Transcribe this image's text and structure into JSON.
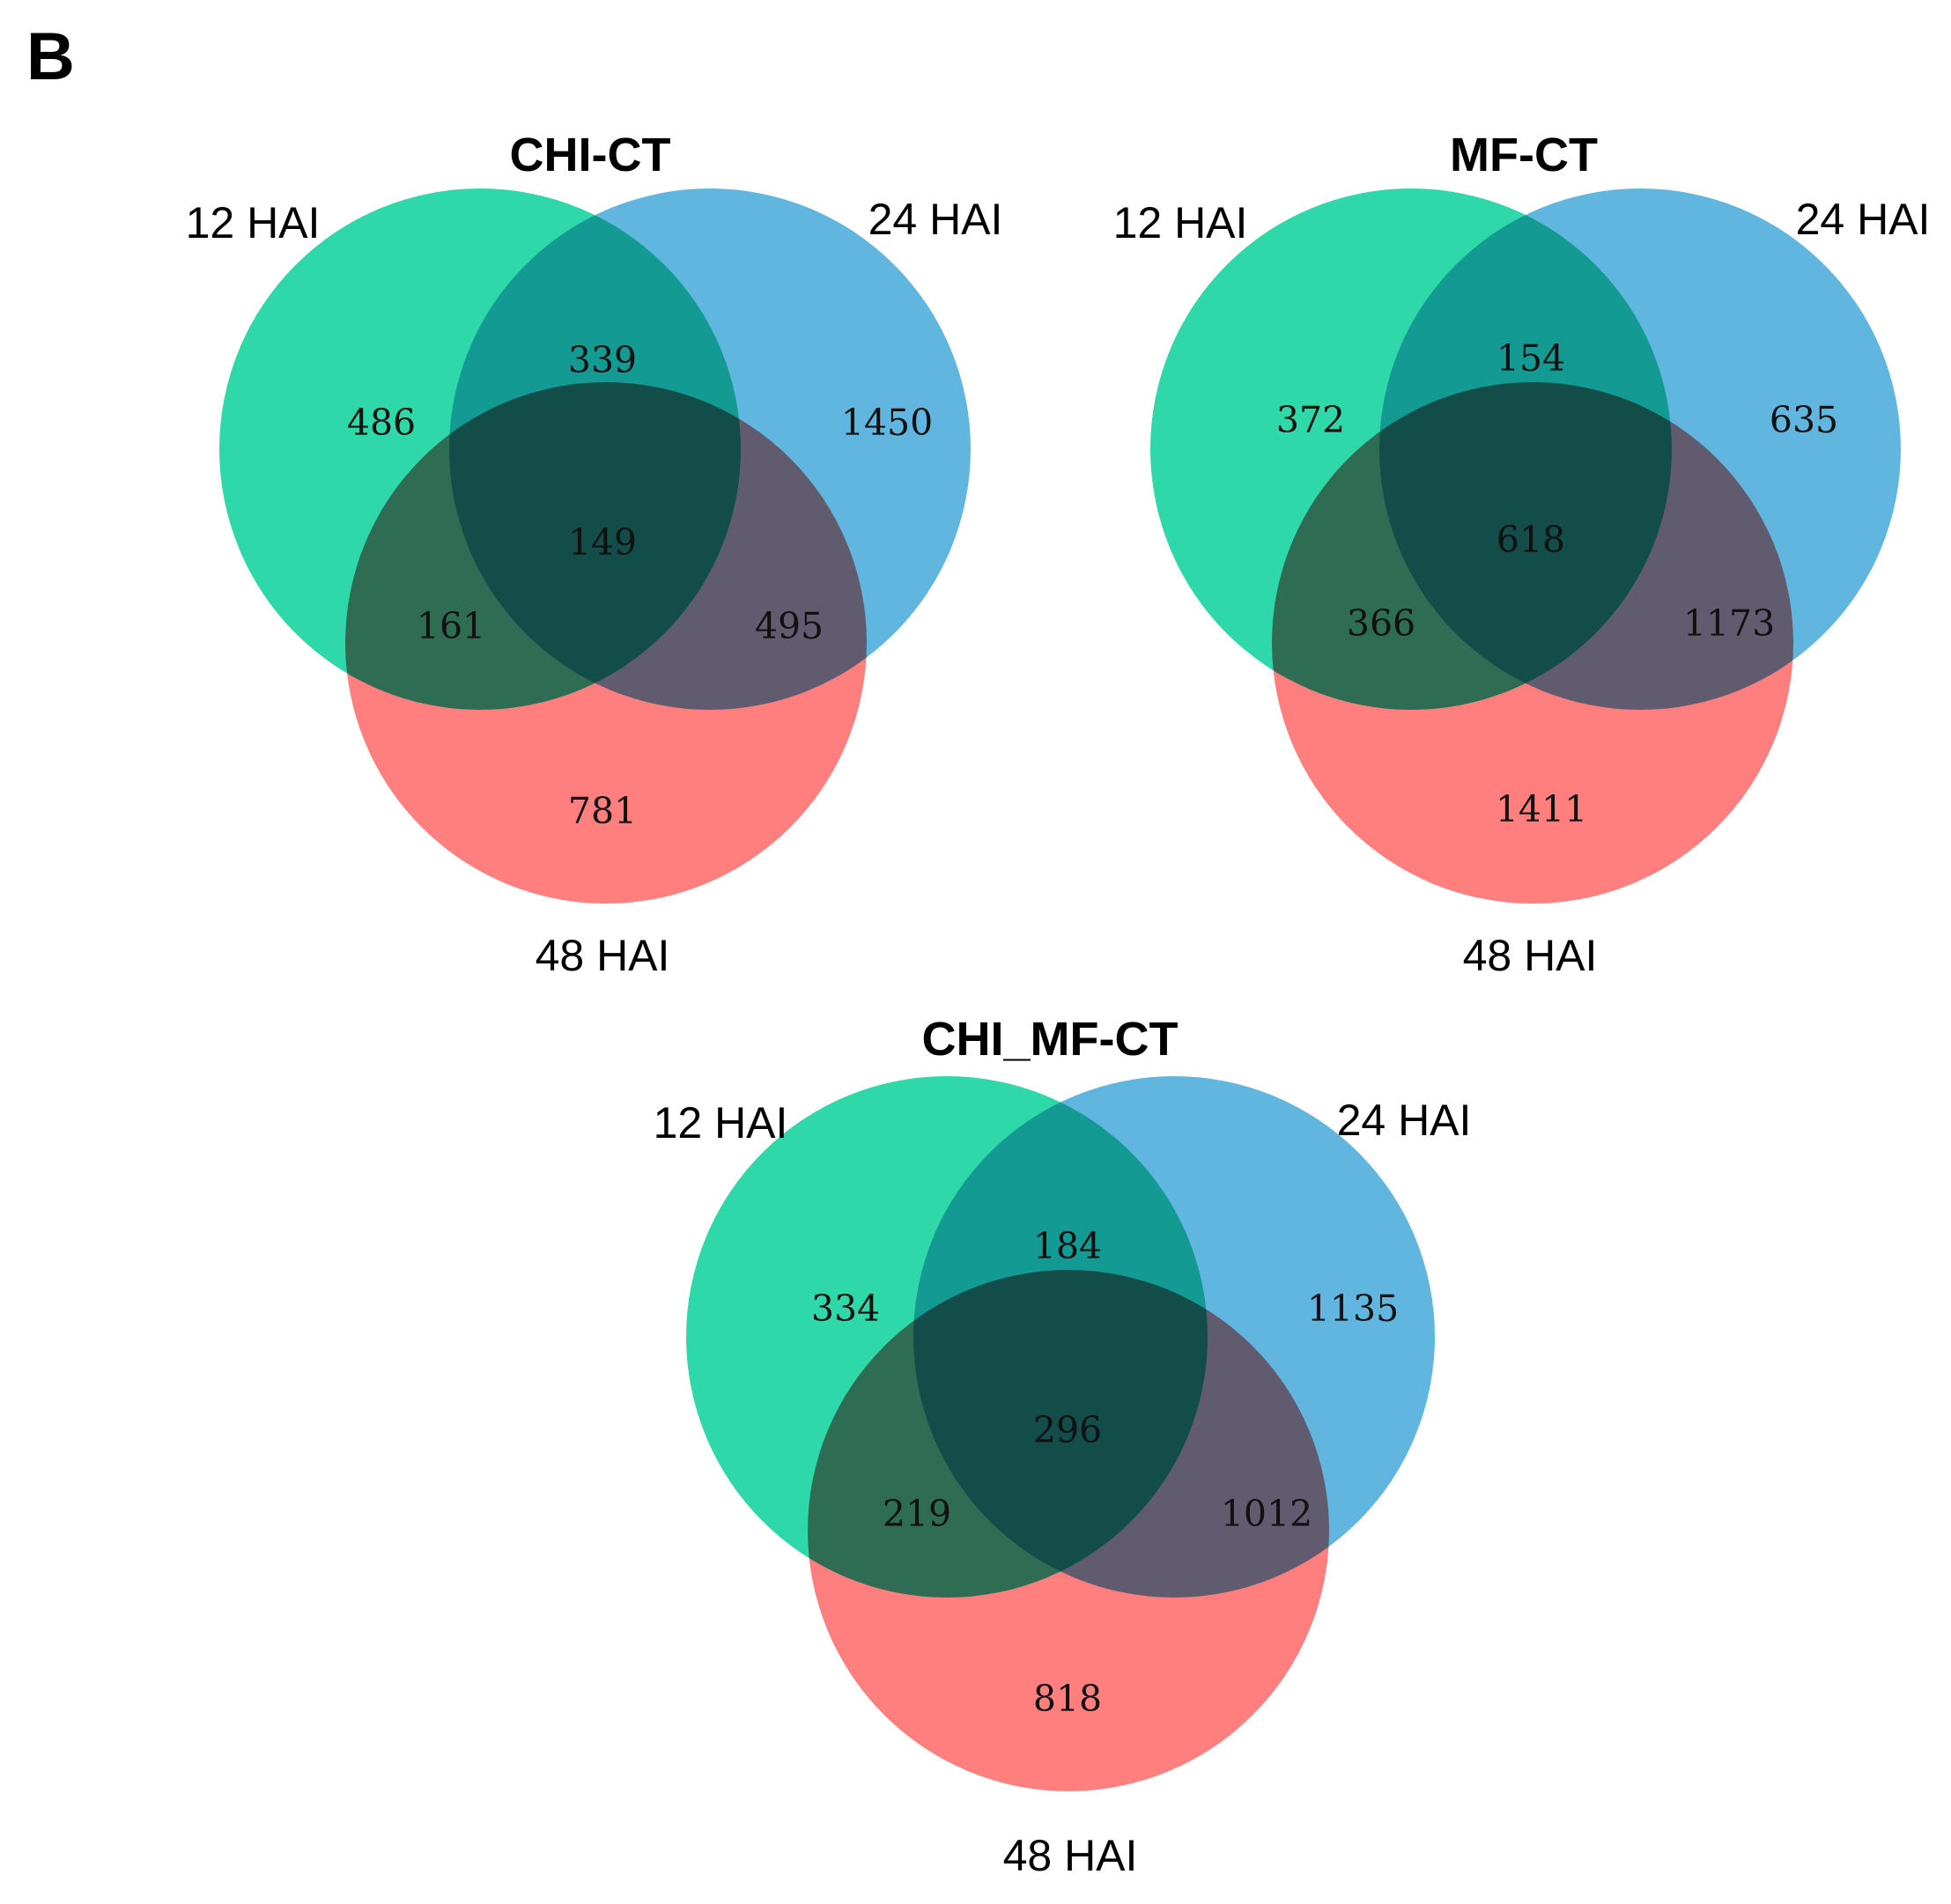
{
  "panel_label": "B",
  "colors": {
    "set_a": "#2ED8A8",
    "set_b": "#60B6DF",
    "set_c": "#FF7F7F"
  },
  "diagrams": [
    {
      "title": "CHI-CT",
      "sets": [
        "12 HAI",
        "24 HAI",
        "48 HAI"
      ],
      "counts": {
        "a_only": "486",
        "b_only": "1450",
        "c_only": "781",
        "ab": "339",
        "ac": "161",
        "bc": "495",
        "abc": "149"
      }
    },
    {
      "title": "MF-CT",
      "sets": [
        "12 HAI",
        "24 HAI",
        "48 HAI"
      ],
      "counts": {
        "a_only": "372",
        "b_only": "635",
        "c_only": "1411",
        "ab": "154",
        "ac": "366",
        "bc": "1173",
        "abc": "618"
      }
    },
    {
      "title": "CHI_MF-CT",
      "sets": [
        "12 HAI",
        "24 HAI",
        "48 HAI"
      ],
      "counts": {
        "a_only": "334",
        "b_only": "1135",
        "c_only": "818",
        "ab": "184",
        "ac": "219",
        "bc": "1012",
        "abc": "296"
      }
    }
  ]
}
